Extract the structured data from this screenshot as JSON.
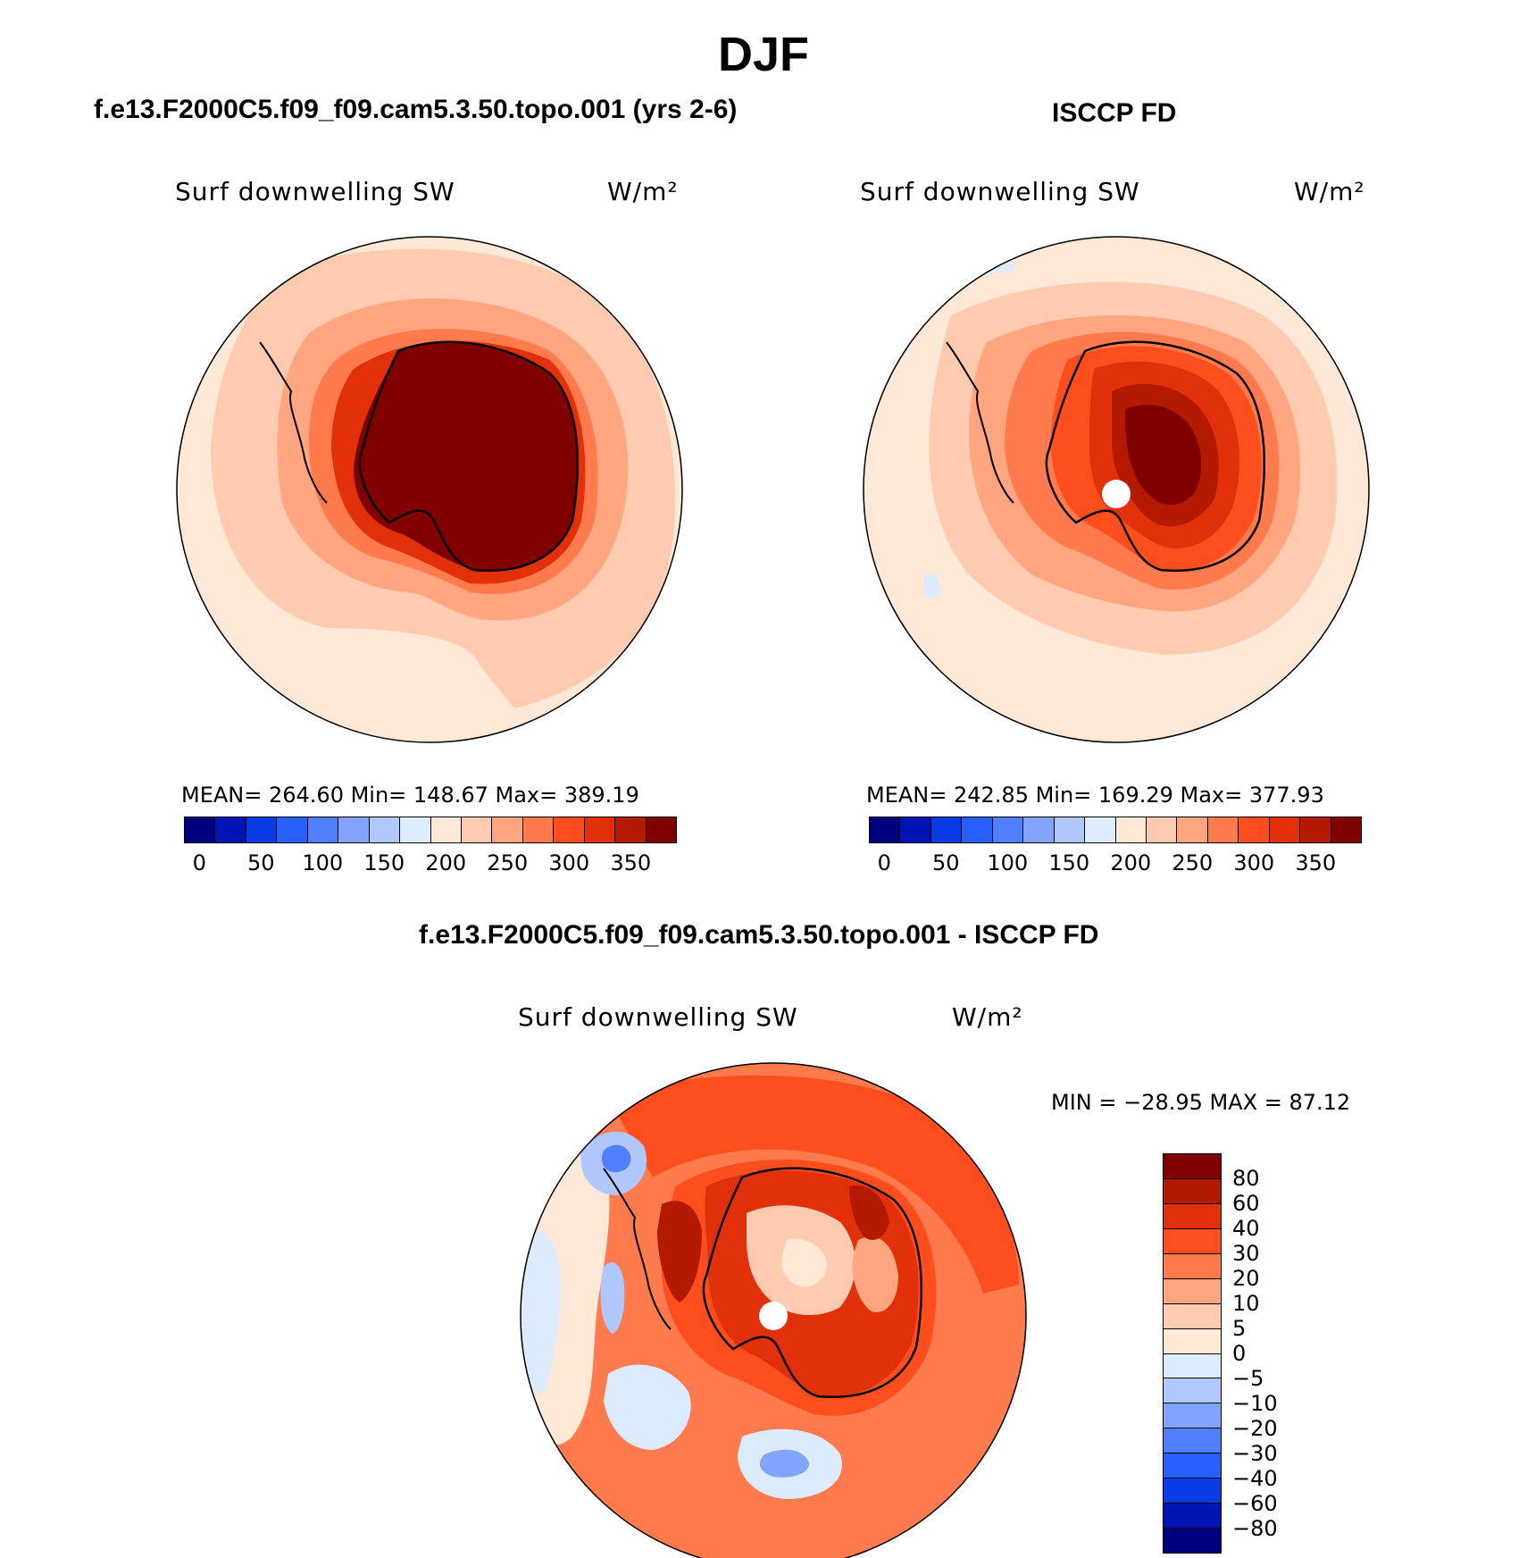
{
  "page": {
    "title": "DJF"
  },
  "panels": {
    "model": {
      "case_title": "f.e13.F2000C5.f09_f09.cam5.3.50.topo.001 (yrs 2-6)",
      "variable": "Surf downwelling SW",
      "units": "W/m²",
      "stats": "MEAN= 264.60   Min= 148.67   Max= 389.19"
    },
    "obs": {
      "case_title": "ISCCP FD",
      "variable": "Surf downwelling SW",
      "units": "W/m²",
      "stats": "MEAN= 242.85   Min= 169.29   Max= 377.93"
    },
    "diff": {
      "case_title": "f.e13.F2000C5.f09_f09.cam5.3.50.topo.001 - ISCCP FD",
      "variable": "Surf downwelling SW",
      "units": "W/m²",
      "stats": "MIN = −28.95 MAX =  87.12"
    }
  },
  "colors": {
    "abs_scale": [
      "#00007f",
      "#0014b4",
      "#0a3ce6",
      "#2860ff",
      "#5080ff",
      "#82a4ff",
      "#b0c8ff",
      "#dcebff",
      "#ffe8d6",
      "#ffcbb0",
      "#ffa57f",
      "#ff7a4c",
      "#ff4e1e",
      "#e2300a",
      "#b41a00",
      "#800000"
    ],
    "diff_scale": [
      "#00007f",
      "#0014b4",
      "#0a3ce6",
      "#2860ff",
      "#5080ff",
      "#82a4ff",
      "#b0c8ff",
      "#dcebff",
      "#ffe8d6",
      "#ffcbb0",
      "#ffa57f",
      "#ff7a4c",
      "#ff4e1e",
      "#e2300a",
      "#b41a00",
      "#800000"
    ],
    "coastline": "#000000"
  },
  "chart_data": [
    {
      "type": "heatmap",
      "title": "f.e13.F2000C5.f09_f09.cam5.3.50.topo.001 (yrs 2-6)",
      "variable": "Surf downwelling SW",
      "units": "W/m²",
      "projection": "south polar stereographic",
      "mean": 264.6,
      "min": 148.67,
      "max": 389.19,
      "colorbar_ticks": [
        "0",
        "50",
        "100",
        "150",
        "200",
        "250",
        "300",
        "350"
      ],
      "levels": [
        0,
        25,
        50,
        75,
        100,
        125,
        150,
        175,
        200,
        225,
        250,
        275,
        300,
        325,
        350
      ]
    },
    {
      "type": "heatmap",
      "title": "ISCCP FD",
      "variable": "Surf downwelling SW",
      "units": "W/m²",
      "projection": "south polar stereographic",
      "mean": 242.85,
      "min": 169.29,
      "max": 377.93,
      "colorbar_ticks": [
        "0",
        "50",
        "100",
        "150",
        "200",
        "250",
        "300",
        "350"
      ],
      "levels": [
        0,
        25,
        50,
        75,
        100,
        125,
        150,
        175,
        200,
        225,
        250,
        275,
        300,
        325,
        350
      ]
    },
    {
      "type": "heatmap",
      "title": "f.e13.F2000C5.f09_f09.cam5.3.50.topo.001 - ISCCP FD",
      "variable": "Surf downwelling SW",
      "units": "W/m²",
      "projection": "south polar stereographic",
      "min": -28.95,
      "max": 87.12,
      "colorbar_ticks": [
        "80",
        "60",
        "40",
        "30",
        "20",
        "10",
        "5",
        "0",
        "−5",
        "−10",
        "−20",
        "−30",
        "−40",
        "−60",
        "−80"
      ],
      "levels": [
        -80,
        -60,
        -40,
        -30,
        -20,
        -10,
        -5,
        0,
        5,
        10,
        20,
        30,
        40,
        60,
        80
      ]
    }
  ]
}
